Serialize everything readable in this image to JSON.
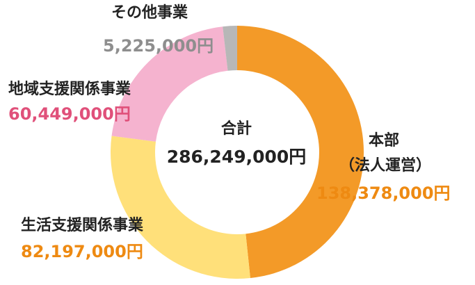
{
  "chart_data": {
    "type": "pie",
    "total_label": "合計",
    "total_value": "286,249,000円",
    "series": [
      {
        "name": "本部",
        "sub": "（法人運営）",
        "value": 138378000,
        "value_label": "138,378,000円",
        "color": "#F39A28",
        "label_color": "#EE8A12"
      },
      {
        "name": "生活支援関係事業",
        "value": 82197000,
        "value_label": "82,197,000円",
        "color": "#FFE07A",
        "label_color": "#EE8A12"
      },
      {
        "name": "地域支援関係事業",
        "value": 60449000,
        "value_label": "60,449,000円",
        "color": "#F5B3CF",
        "label_color": "#E0507A"
      },
      {
        "name": "その他事業",
        "value": 5225000,
        "value_label": "5,225,000円",
        "color": "#B7B7B7",
        "label_color": "#8E8E8E"
      }
    ]
  }
}
